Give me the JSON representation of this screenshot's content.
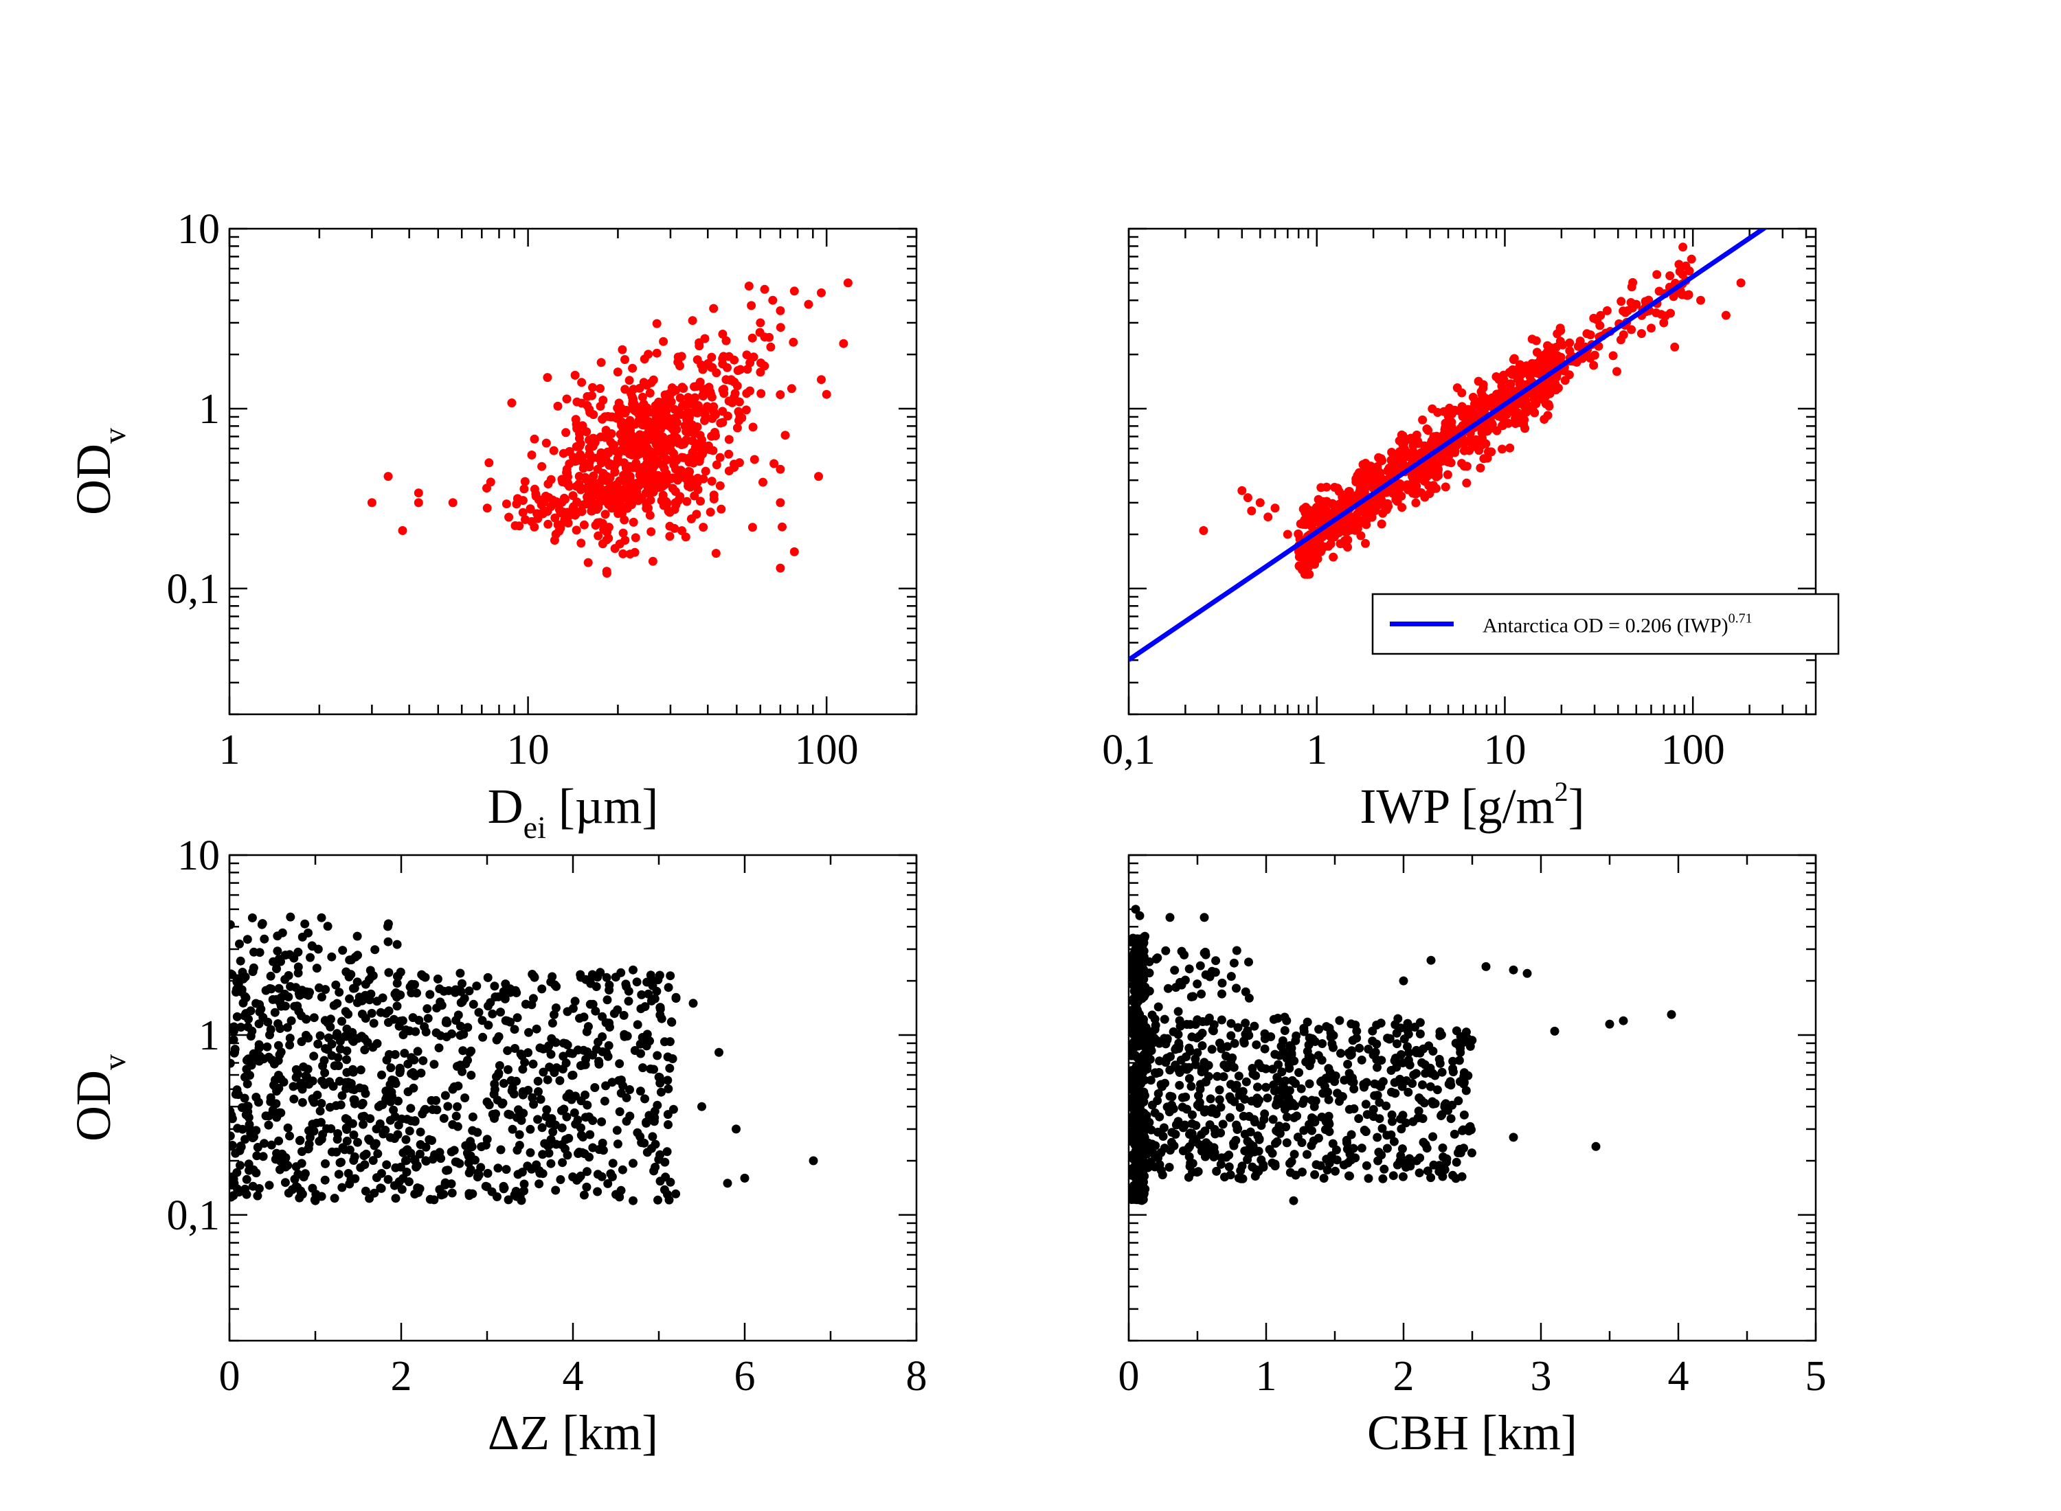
{
  "chart_data": [
    {
      "id": "p1",
      "type": "scatter",
      "xscale": "log",
      "yscale": "log",
      "xlim": [
        1,
        200
      ],
      "ylim": [
        0.02,
        10
      ],
      "xticks": [
        "1",
        "10",
        "100"
      ],
      "xtick_values": [
        1,
        10,
        100
      ],
      "yticks": [
        "0,1",
        "1",
        "10"
      ],
      "ytick_values": [
        0.1,
        1,
        10
      ],
      "xlabel": {
        "main": "D",
        "sub": "ei",
        "rest": " [µm]"
      },
      "ylabel": {
        "main": "OD",
        "sub": "v"
      },
      "series": [
        {
          "color": "#ff0000",
          "clusters": [
            {
              "cx": 25,
              "cy": 0.6,
              "sx": 0.13,
              "sy": 0.22,
              "n": 560
            },
            {
              "cx": 16,
              "cy": 0.32,
              "sx": 0.12,
              "sy": 0.15,
              "n": 130
            },
            {
              "cx": 45,
              "cy": 1.4,
              "sx": 0.1,
              "sy": 0.2,
              "n": 90
            },
            {
              "cx": 11,
              "cy": 0.28,
              "sx": 0.06,
              "sy": 0.08,
              "n": 30
            }
          ],
          "points": [
            [
              3.0,
              0.3
            ],
            [
              3.4,
              0.42
            ],
            [
              3.8,
              0.21
            ],
            [
              4.3,
              0.34
            ],
            [
              4.3,
              0.3
            ],
            [
              5.6,
              0.3
            ],
            [
              7.3,
              0.28
            ],
            [
              7.4,
              0.5
            ],
            [
              70,
              0.46
            ],
            [
              70,
              0.3
            ],
            [
              71,
              0.22
            ],
            [
              70,
              0.13
            ],
            [
              78,
              0.16
            ],
            [
              94,
              0.42
            ],
            [
              96,
              1.45
            ],
            [
              100,
              1.2
            ],
            [
              114,
              2.3
            ],
            [
              118,
              5.0
            ],
            [
              96,
              4.4
            ],
            [
              87,
              3.8
            ],
            [
              78,
              4.5
            ],
            [
              62,
              4.6
            ],
            [
              55,
              4.8
            ],
            [
              60,
              3.0
            ],
            [
              62,
              2.5
            ],
            [
              65,
              2.2
            ],
            [
              70,
              3.5
            ],
            [
              66,
              4.0
            ]
          ]
        }
      ]
    },
    {
      "id": "p2",
      "type": "scatter",
      "xscale": "log",
      "yscale": "log",
      "xlim": [
        0.1,
        450
      ],
      "ylim": [
        0.02,
        10
      ],
      "xticks": [
        "0,1",
        "1",
        "10",
        "100"
      ],
      "xtick_values": [
        0.1,
        1,
        10,
        100
      ],
      "yticks": [],
      "ytick_values": [
        0.1,
        1,
        10
      ],
      "xlabel": {
        "main": "IWP [g/m",
        "sup": "2",
        "rest": "]"
      },
      "ylabel": null,
      "fit": {
        "a": 0.206,
        "b": 0.71,
        "color": "#0000ff",
        "legend": "Antarctica OD = 0.206 (IWP)",
        "legend_sup": "0.71"
      },
      "series": [
        {
          "color": "#ff0000",
          "clusters": [
            {
              "logx_min": -0.1,
              "logx_max": 1.3,
              "resid_sd": 0.1,
              "n": 850
            },
            {
              "logx_min": 1.3,
              "logx_max": 2.0,
              "resid_sd": 0.08,
              "n": 90
            }
          ],
          "points": [
            [
              0.25,
              0.21
            ],
            [
              0.4,
              0.35
            ],
            [
              0.43,
              0.32
            ],
            [
              0.5,
              0.3
            ],
            [
              0.45,
              0.27
            ],
            [
              0.6,
              0.28
            ],
            [
              0.55,
              0.25
            ],
            [
              0.7,
              0.2
            ],
            [
              0.8,
              0.2
            ],
            [
              35,
              3.5
            ],
            [
              45,
              3.5
            ],
            [
              50,
              3.8
            ],
            [
              60,
              2.8
            ],
            [
              70,
              3.0
            ],
            [
              95,
              4.3
            ],
            [
              110,
              4.0
            ],
            [
              180,
              5.0
            ],
            [
              150,
              3.3
            ],
            [
              80,
              2.2
            ]
          ]
        }
      ]
    },
    {
      "id": "p3",
      "type": "scatter",
      "xscale": "linear",
      "yscale": "log",
      "xlim": [
        0,
        8
      ],
      "ylim": [
        0.02,
        10
      ],
      "xticks": [
        "0",
        "2",
        "4",
        "6",
        "8"
      ],
      "xtick_values": [
        0,
        2,
        4,
        6,
        8
      ],
      "yticks": [
        "0,1",
        "1",
        "10"
      ],
      "ytick_values": [
        0.1,
        1,
        10
      ],
      "xlabel": {
        "main": "ΔZ [km]"
      },
      "ylabel": {
        "main": "OD",
        "sub": "v"
      },
      "series": [
        {
          "color": "#000000",
          "clusters": [
            {
              "xmin": 0,
              "xmax": 5.2,
              "ylog_min": -0.92,
              "ylog_max": 0.35,
              "n": 980
            },
            {
              "xmin": 0,
              "xmax": 2.0,
              "ylog_min": 0.2,
              "ylog_max": 0.66,
              "n": 70
            }
          ],
          "points": [
            [
              4.5,
              0.13
            ],
            [
              4.7,
              0.12
            ],
            [
              5.1,
              0.13
            ],
            [
              5.8,
              0.15
            ],
            [
              6.0,
              0.16
            ],
            [
              6.8,
              0.2
            ],
            [
              5.7,
              0.8
            ],
            [
              5.5,
              0.4
            ],
            [
              5.9,
              0.3
            ],
            [
              5.4,
              1.5
            ],
            [
              4.7,
              2.3
            ],
            [
              5.2,
              1.6
            ],
            [
              1.0,
              0.12
            ],
            [
              0.2,
              0.13
            ]
          ]
        }
      ]
    },
    {
      "id": "p4",
      "type": "scatter",
      "xscale": "linear",
      "yscale": "log",
      "xlim": [
        0,
        5
      ],
      "ylim": [
        0.02,
        10
      ],
      "xticks": [
        "0",
        "1",
        "2",
        "3",
        "4",
        "5"
      ],
      "xtick_values": [
        0,
        1,
        2,
        3,
        4,
        5
      ],
      "yticks": [],
      "ytick_values": [
        0.1,
        1,
        10
      ],
      "xlabel": {
        "main": "CBH [km]"
      },
      "ylabel": null,
      "series": [
        {
          "color": "#000000",
          "clusters": [
            {
              "xmin": 0.02,
              "xmax": 0.12,
              "ylog_min": -0.95,
              "ylog_max": 0.55,
              "n": 320
            },
            {
              "xmin": 0.1,
              "xmax": 2.5,
              "ylog_min": -0.8,
              "ylog_max": 0.1,
              "n": 700
            },
            {
              "xmin": 0.15,
              "xmax": 0.9,
              "ylog_min": 0.1,
              "ylog_max": 0.5,
              "n": 40
            }
          ],
          "points": [
            [
              2.8,
              0.27
            ],
            [
              2.9,
              2.2
            ],
            [
              2.8,
              2.3
            ],
            [
              3.1,
              1.05
            ],
            [
              3.4,
              0.24
            ],
            [
              3.5,
              1.15
            ],
            [
              3.6,
              1.2
            ],
            [
              3.95,
              1.3
            ],
            [
              2.6,
              2.4
            ],
            [
              2.2,
              2.6
            ],
            [
              2.0,
              2.0
            ],
            [
              1.2,
              0.12
            ],
            [
              0.3,
              4.5
            ],
            [
              0.55,
              4.5
            ],
            [
              0.05,
              5.0
            ],
            [
              0.08,
              4.6
            ]
          ]
        }
      ]
    }
  ]
}
